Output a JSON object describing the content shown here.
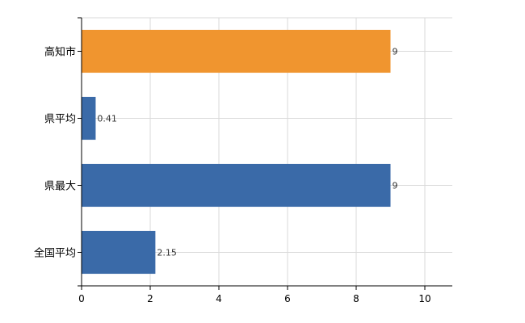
{
  "chart_data": {
    "type": "bar",
    "orientation": "horizontal",
    "categories": [
      "高知市",
      "県平均",
      "県最大",
      "全国平均"
    ],
    "values": [
      9,
      0.41,
      9,
      2.15
    ],
    "value_labels": [
      "9",
      "0.41",
      "9",
      "2.15"
    ],
    "bar_colors": [
      "#f0952f",
      "#3a6aa8",
      "#3a6aa8",
      "#3a6aa8"
    ],
    "xlim": [
      0,
      10.8
    ],
    "xticks": [
      "0",
      "2",
      "4",
      "6",
      "8",
      "10"
    ],
    "grid": true,
    "legend": false,
    "title": "",
    "xlabel": "",
    "ylabel": ""
  }
}
